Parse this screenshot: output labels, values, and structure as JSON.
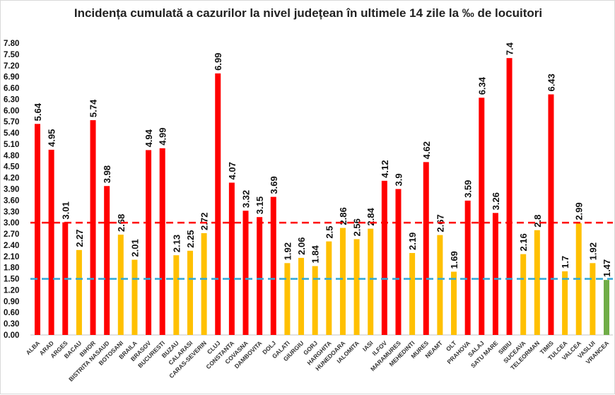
{
  "chart_data": {
    "type": "bar",
    "title": "Incidența cumulată a cazurilor la nivel județean în ultimele 14 zile la ‰ de locuitori",
    "xlabel": "",
    "ylabel": "",
    "ylim": [
      0,
      7.8
    ],
    "ytick_step": 0.3,
    "grid": false,
    "legend": "none",
    "categories": [
      "ALBA",
      "ARAD",
      "ARGES",
      "BACAU",
      "BIHOR",
      "BISTRITA NASAUD",
      "BOTOSANI",
      "BRAILA",
      "BRASOV",
      "BUCURESTI",
      "BUZAU",
      "CALARASI",
      "CARAS-SEVERIN",
      "CLUJ",
      "CONSTANTA",
      "COVASNA",
      "DAMBOVITA",
      "DOLJ",
      "GALATI",
      "GIURGIU",
      "GORJ",
      "HARGHITA",
      "HUNEDOARA",
      "IALOMITA",
      "IASI",
      "ILFOV",
      "MARAMURES",
      "MEHEDINTI",
      "MURES",
      "NEAMT",
      "OLT",
      "PRAHOVA",
      "SALAJ",
      "SATU MARE",
      "SIBIU",
      "SUCEAVA",
      "TELEORMAN",
      "TIMIS",
      "TULCEA",
      "VALCEA",
      "VASLUI",
      "VRANCEA"
    ],
    "values": [
      5.64,
      4.95,
      3.01,
      2.27,
      5.74,
      3.98,
      2.68,
      2.01,
      4.94,
      4.99,
      2.13,
      2.25,
      2.72,
      6.99,
      4.07,
      3.32,
      3.15,
      3.69,
      1.92,
      2.06,
      1.84,
      2.5,
      2.86,
      2.56,
      2.84,
      4.12,
      3.9,
      2.19,
      4.62,
      2.67,
      1.69,
      3.59,
      6.34,
      3.26,
      7.4,
      2.16,
      2.8,
      6.43,
      1.7,
      2.99,
      1.92,
      1.47
    ],
    "value_labels": [
      "5.64",
      "4.95",
      "3.01",
      "2.27",
      "5.74",
      "3.98",
      "2.68",
      "2.01",
      "4.94",
      "4.99",
      "2.13",
      "2.25",
      "2.72",
      "6.99",
      "4.07",
      "3.32",
      "3.15",
      "3.69",
      "1.92",
      "2.06",
      "1.84",
      "2.5",
      "2.86",
      "2.56",
      "2.84",
      "4.12",
      "3.9",
      "2.19",
      "4.62",
      "2.67",
      "1.69",
      "3.59",
      "6.34",
      "3.26",
      "7.4",
      "2.16",
      "2.8",
      "6.43",
      "1.7",
      "2.99",
      "1.92",
      "1.47"
    ],
    "thresholds": [
      {
        "value": 3.0,
        "color": "#ff0000",
        "style": "dashed"
      },
      {
        "value": 1.5,
        "color": "#2ea8d8",
        "style": "dashed"
      }
    ],
    "colors": {
      "above_3": "#ff0000",
      "between": "#ffc000",
      "below_1_5": "#70ad47"
    }
  }
}
